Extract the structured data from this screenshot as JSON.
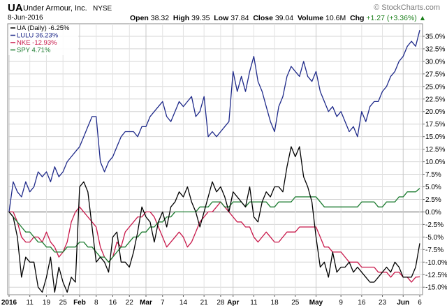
{
  "header": {
    "ticker": "UA",
    "company": "Under Armour, Inc.",
    "exchange": "NYSE",
    "date": "8-Jun-2016",
    "watermark": "© StockCharts.com",
    "quote": {
      "open_label": "Open",
      "open": "38.32",
      "high_label": "High",
      "high": "39.35",
      "low_label": "Low",
      "low": "37.84",
      "close_label": "Close",
      "close": "39.04",
      "volume_label": "Volume",
      "volume": "10.6M",
      "chg_label": "Chg",
      "chg": "+1.27 (+3.36%)"
    }
  },
  "chart_data": {
    "type": "line",
    "title": "",
    "xlabel": "",
    "ylabel": "",
    "ylim": [
      -16.5,
      37.5
    ],
    "y_ticks": [
      35,
      32.5,
      30,
      27.5,
      25,
      22.5,
      20,
      17.5,
      15,
      12.5,
      10,
      7.5,
      5,
      2.5,
      0,
      -2.5,
      -5,
      -7.5,
      -10,
      -12.5,
      -15
    ],
    "y_tick_labels": [
      "35.0%",
      "32.5%",
      "30.0%",
      "27.5%",
      "25.0%",
      "22.5%",
      "20.0%",
      "17.5%",
      "15.0%",
      "12.5%",
      "10.0%",
      "7.5%",
      "5.0%",
      "2.5%",
      "0.0%",
      "-2.5%",
      "-5.0%",
      "-7.5%",
      "-10.0%",
      "-12.5%",
      "-15.0%"
    ],
    "x_ticks": [
      {
        "i": 0,
        "label": "2016",
        "bold": true
      },
      {
        "i": 5,
        "label": "11",
        "bold": false
      },
      {
        "i": 9,
        "label": "19",
        "bold": false
      },
      {
        "i": 13,
        "label": "25",
        "bold": false
      },
      {
        "i": 17,
        "label": "Feb",
        "bold": true
      },
      {
        "i": 21,
        "label": "8",
        "bold": false
      },
      {
        "i": 25,
        "label": "16",
        "bold": false
      },
      {
        "i": 29,
        "label": "22",
        "bold": false
      },
      {
        "i": 33,
        "label": "Mar",
        "bold": true
      },
      {
        "i": 37,
        "label": "7",
        "bold": false
      },
      {
        "i": 42,
        "label": "14",
        "bold": false
      },
      {
        "i": 47,
        "label": "21",
        "bold": false
      },
      {
        "i": 51,
        "label": "28",
        "bold": false
      },
      {
        "i": 54,
        "label": "Apr",
        "bold": true
      },
      {
        "i": 59,
        "label": "11",
        "bold": false
      },
      {
        "i": 64,
        "label": "18",
        "bold": false
      },
      {
        "i": 69,
        "label": "25",
        "bold": false
      },
      {
        "i": 74,
        "label": "May",
        "bold": true
      },
      {
        "i": 80,
        "label": "9",
        "bold": false
      },
      {
        "i": 85,
        "label": "16",
        "bold": false
      },
      {
        "i": 90,
        "label": "23",
        "bold": false
      },
      {
        "i": 95,
        "label": "Jun",
        "bold": true
      },
      {
        "i": 99,
        "label": "6",
        "bold": false
      }
    ],
    "zero_line": 0,
    "legend_position": "top-left",
    "series": [
      {
        "name": "UA (Daily)",
        "legend_label": "UA (Daily) -6.25%",
        "color": "#000000",
        "values": [
          0,
          -1,
          -5,
          -13,
          -9,
          -10,
          -10,
          -15,
          -16,
          -13,
          -9,
          -16,
          -11,
          -14,
          -16,
          -13,
          -14,
          5,
          6,
          4,
          -3,
          -10,
          -9,
          -10,
          -12,
          -5,
          -4,
          -10,
          -10,
          -11,
          -8,
          -4,
          1,
          -1,
          -2,
          -6,
          -2,
          0,
          -3,
          1,
          2,
          4,
          3,
          5,
          2,
          0,
          -3,
          0,
          3,
          6,
          4,
          5,
          3,
          0,
          4,
          3,
          2,
          1,
          5,
          -1,
          -2,
          2,
          4,
          3,
          5,
          5,
          4,
          9,
          13,
          11,
          13,
          7,
          5,
          2,
          -5,
          -11,
          -10,
          -13,
          -8,
          -12,
          -11,
          -11,
          -10,
          -12,
          -11,
          -12,
          -13,
          -14,
          -14,
          -13,
          -12,
          -11,
          -12,
          -10,
          -11,
          -13,
          -13,
          -13,
          -11,
          -6.25
        ]
      },
      {
        "name": "LULU",
        "legend_label": "LULU 36.23%",
        "color": "#1f2a8a",
        "values": [
          0,
          6,
          4,
          3,
          6,
          4,
          5,
          8,
          7,
          8,
          6,
          9,
          7,
          8,
          10,
          11,
          12,
          13,
          15,
          17,
          19,
          19,
          10,
          8,
          10,
          11,
          13,
          15,
          16,
          16,
          16,
          15,
          17,
          17,
          19,
          20,
          21,
          22,
          19,
          18,
          20,
          22,
          21,
          22,
          23,
          19,
          20,
          23,
          15,
          16,
          15,
          16,
          17,
          18,
          28,
          24,
          27,
          24,
          28,
          31,
          26,
          24,
          21,
          18,
          16,
          21,
          23,
          27,
          29,
          28,
          27,
          30,
          27,
          26,
          28,
          24,
          22,
          20,
          21,
          19,
          20,
          18,
          16,
          17,
          15,
          20,
          18,
          21,
          22,
          22,
          24,
          25,
          27,
          28,
          30,
          31,
          33,
          34,
          33,
          36.23
        ]
      },
      {
        "name": "NKE",
        "legend_label": "NKE -12.93%",
        "color": "#c8184a",
        "values": [
          0,
          0,
          -2,
          -5,
          -6,
          -6,
          -5,
          -5,
          -6,
          -4,
          -6,
          -7,
          -9,
          -8,
          -6,
          -2,
          0,
          1,
          0,
          -1,
          -2,
          -3,
          -7,
          -9,
          -10,
          -9,
          -6,
          -7,
          -4,
          -3,
          -2,
          -1,
          -1,
          0,
          0,
          -1,
          -3,
          -5,
          -7,
          -6,
          -5,
          -4,
          -5,
          -7,
          -6,
          -4,
          -2,
          -1,
          0,
          0,
          1,
          2,
          1,
          0,
          -1,
          -2,
          -2,
          -3,
          -3,
          -5,
          -6,
          -5,
          -4,
          -5,
          -6,
          -6,
          -5,
          -4,
          -4,
          -4,
          -3,
          -3,
          -3,
          -3,
          -3,
          -5,
          -7,
          -7,
          -8,
          -8,
          -8,
          -9,
          -10,
          -10,
          -10,
          -11,
          -11,
          -11,
          -11,
          -12,
          -12,
          -12,
          -13,
          -12,
          -12,
          -13,
          -13,
          -14,
          -13,
          -12.93
        ]
      },
      {
        "name": "SPY",
        "legend_label": "SPY 4.71%",
        "color": "#1a7a2e",
        "values": [
          0,
          -1,
          -2,
          -3,
          -4,
          -4,
          -5,
          -6,
          -6,
          -7,
          -7,
          -8,
          -8,
          -8,
          -7,
          -7,
          -7,
          -6,
          -6,
          -7,
          -7,
          -8,
          -9,
          -9,
          -10,
          -9,
          -8,
          -7,
          -7,
          -6,
          -5,
          -5,
          -4,
          -4,
          -3,
          -3,
          -2,
          -2,
          -1,
          -1,
          0,
          0,
          0,
          0,
          0,
          0,
          1,
          1,
          1,
          2,
          2,
          2,
          1,
          1,
          2,
          2,
          2,
          1,
          2,
          2,
          2,
          2,
          2,
          1,
          1,
          2,
          2,
          2,
          2,
          3,
          3,
          3,
          3,
          3,
          3,
          2,
          1,
          1,
          1,
          1,
          1,
          1,
          1,
          1,
          1,
          2,
          2,
          2,
          2,
          1,
          1,
          2,
          2,
          2,
          3,
          3,
          4,
          4,
          4,
          4.71
        ]
      }
    ]
  }
}
